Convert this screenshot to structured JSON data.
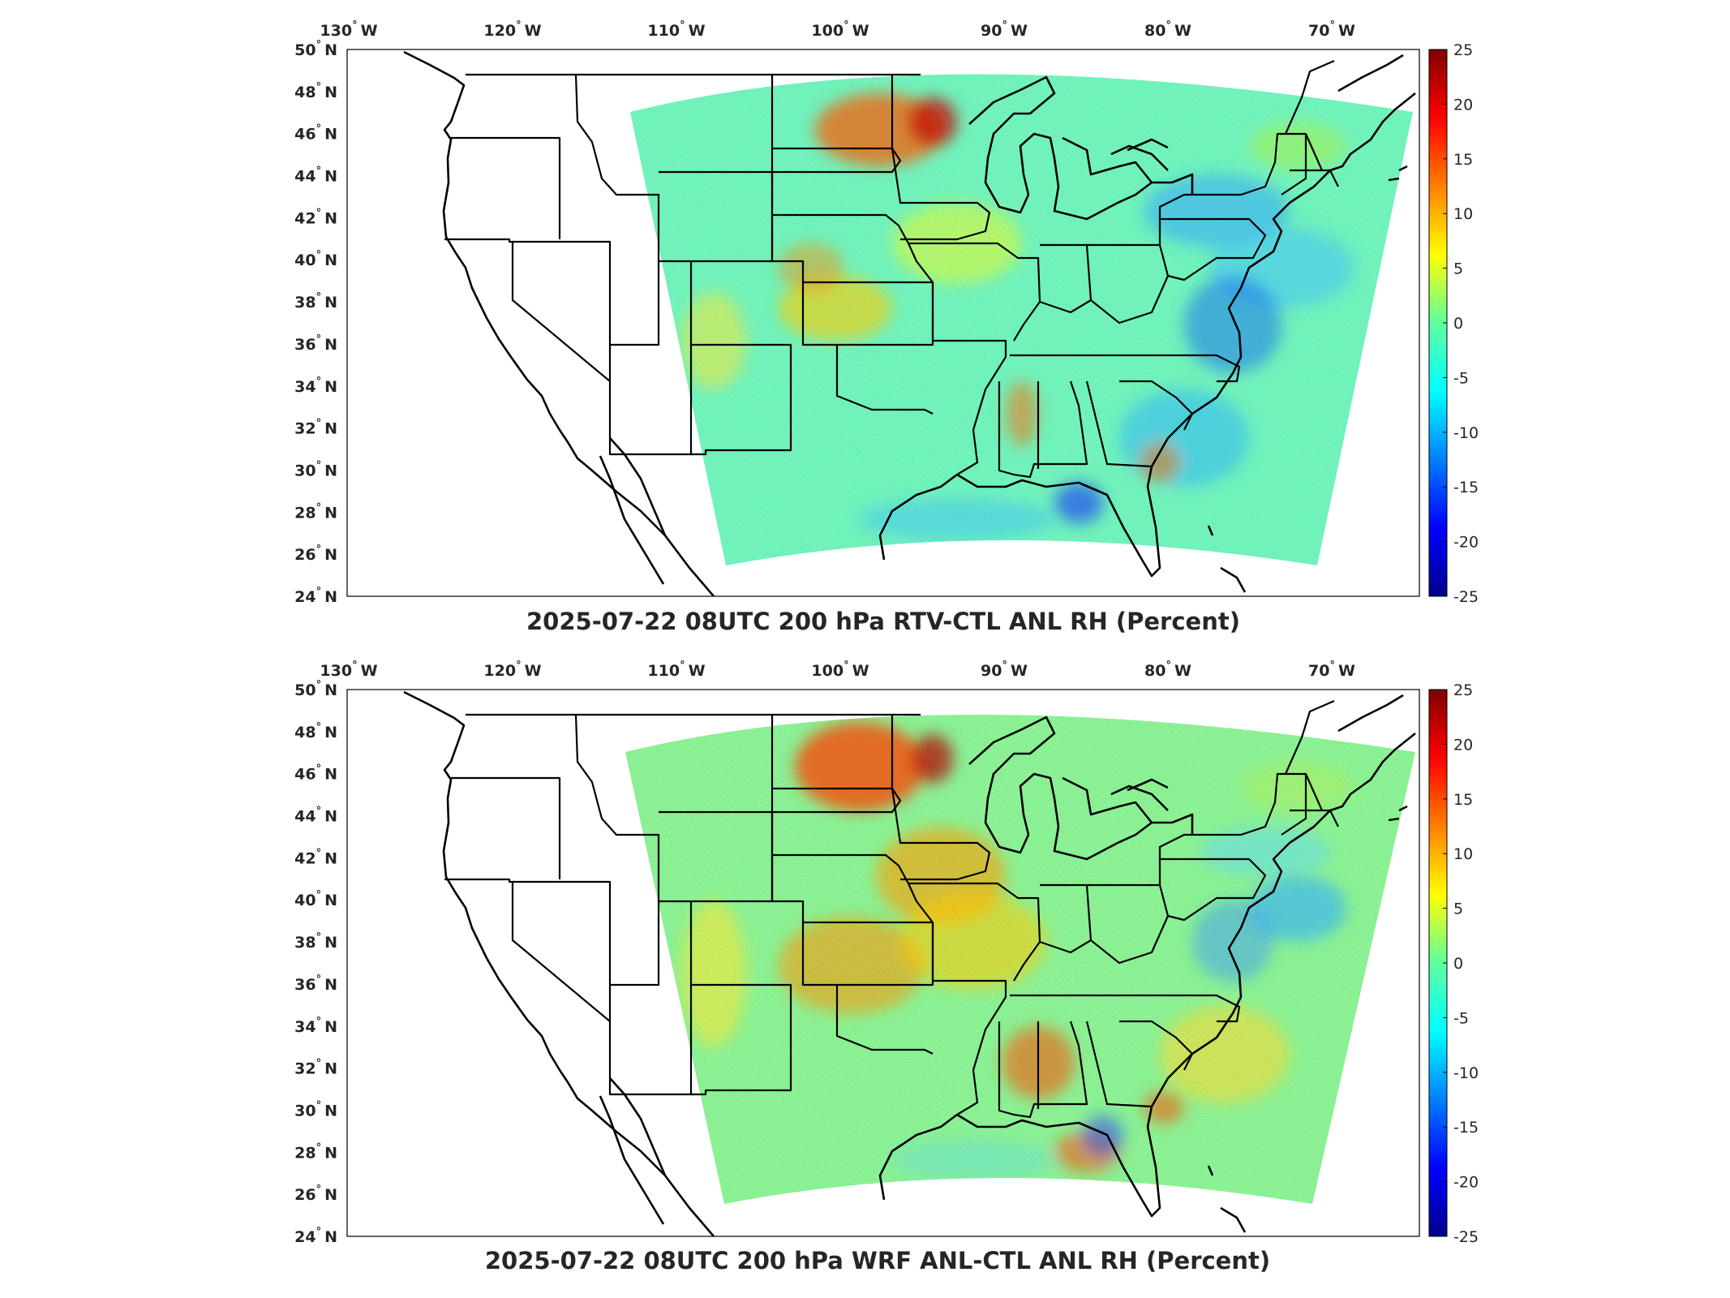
{
  "panels": [
    {
      "title": "2025-07-22 08UTC 200 hPa RTV-CTL ANL RH (Percent)",
      "pattern": "rtv"
    },
    {
      "title": "2025-07-22 08UTC 200 hPa WRF ANL-CTL ANL RH (Percent)",
      "pattern": "wrf"
    }
  ],
  "lon_ticks": [
    {
      "label": "130",
      "dir": "W",
      "lon": -130
    },
    {
      "label": "120",
      "dir": "W",
      "lon": -120
    },
    {
      "label": "110",
      "dir": "W",
      "lon": -110
    },
    {
      "label": "100",
      "dir": "W",
      "lon": -100
    },
    {
      "label": "90",
      "dir": "W",
      "lon": -90
    },
    {
      "label": "80",
      "dir": "W",
      "lon": -80
    },
    {
      "label": "70",
      "dir": "W",
      "lon": -70
    }
  ],
  "lat_ticks": [
    {
      "label": "50",
      "dir": "N",
      "lat": 50
    },
    {
      "label": "48",
      "dir": "N",
      "lat": 48
    },
    {
      "label": "46",
      "dir": "N",
      "lat": 46
    },
    {
      "label": "44",
      "dir": "N",
      "lat": 44
    },
    {
      "label": "42",
      "dir": "N",
      "lat": 42
    },
    {
      "label": "40",
      "dir": "N",
      "lat": 40
    },
    {
      "label": "38",
      "dir": "N",
      "lat": 38
    },
    {
      "label": "36",
      "dir": "N",
      "lat": 36
    },
    {
      "label": "34",
      "dir": "N",
      "lat": 34
    },
    {
      "label": "32",
      "dir": "N",
      "lat": 32
    },
    {
      "label": "30",
      "dir": "N",
      "lat": 30
    },
    {
      "label": "28",
      "dir": "N",
      "lat": 28
    },
    {
      "label": "26",
      "dir": "N",
      "lat": 26
    },
    {
      "label": "24",
      "dir": "N",
      "lat": 24
    }
  ],
  "colorbar": {
    "min": -25,
    "max": 25,
    "ticks": [
      "25",
      "20",
      "15",
      "10",
      "5",
      "0",
      "-5",
      "-10",
      "-15",
      "-20",
      "-25"
    ],
    "colormap": "jet"
  }
}
